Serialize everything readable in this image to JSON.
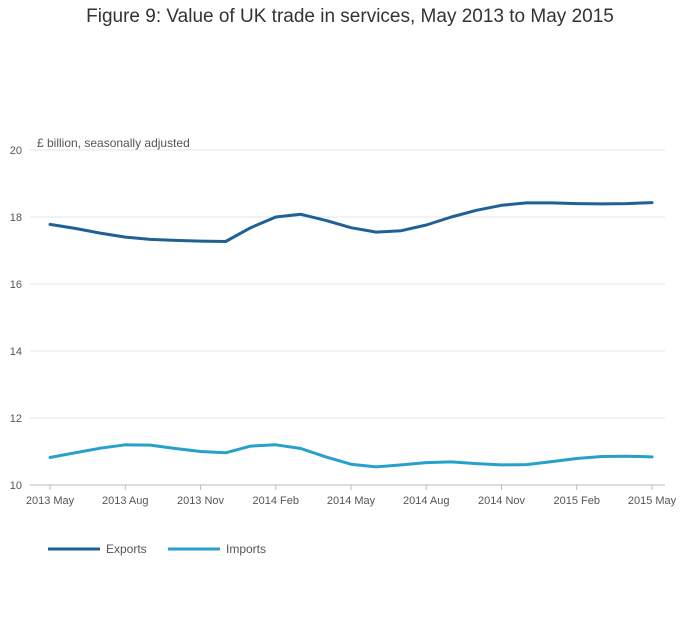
{
  "chart_data": {
    "type": "line",
    "title": "Figure 9: Value of UK trade in services, May 2013 to May 2015",
    "ylabel": "£ billion, seasonally adjusted",
    "xlabel": "",
    "ylim": [
      10,
      20
    ],
    "yticks": [
      10,
      12,
      14,
      16,
      18,
      20
    ],
    "x": [
      "2013 May",
      "2013 Jun",
      "2013 Jul",
      "2013 Aug",
      "2013 Sep",
      "2013 Oct",
      "2013 Nov",
      "2013 Dec",
      "2014 Jan",
      "2014 Feb",
      "2014 Mar",
      "2014 Apr",
      "2014 May",
      "2014 Jun",
      "2014 Jul",
      "2014 Aug",
      "2014 Sep",
      "2014 Oct",
      "2014 Nov",
      "2014 Dec",
      "2015 Jan",
      "2015 Feb",
      "2015 Mar",
      "2015 Apr",
      "2015 May"
    ],
    "xtick_labels": [
      "2013 May",
      "2013 Aug",
      "2013 Nov",
      "2014 Feb",
      "2014 May",
      "2014 Aug",
      "2014 Nov",
      "2015 Feb",
      "2015 May"
    ],
    "grid": true,
    "legend": "bottom-left",
    "series": [
      {
        "name": "Exports",
        "color": "#206095",
        "values": [
          17.78,
          17.66,
          17.52,
          17.4,
          17.33,
          17.3,
          17.28,
          17.27,
          17.68,
          18.0,
          18.08,
          17.9,
          17.68,
          17.55,
          17.59,
          17.76,
          18.0,
          18.2,
          18.35,
          18.42,
          18.42,
          18.4,
          18.39,
          18.4,
          18.43
        ]
      },
      {
        "name": "Imports",
        "color": "#27a0cc",
        "values": [
          10.82,
          10.96,
          11.1,
          11.2,
          11.19,
          11.09,
          11.0,
          10.96,
          11.16,
          11.2,
          11.09,
          10.84,
          10.62,
          10.54,
          10.6,
          10.67,
          10.69,
          10.64,
          10.6,
          10.61,
          10.7,
          10.79,
          10.85,
          10.86,
          10.84
        ]
      }
    ]
  }
}
